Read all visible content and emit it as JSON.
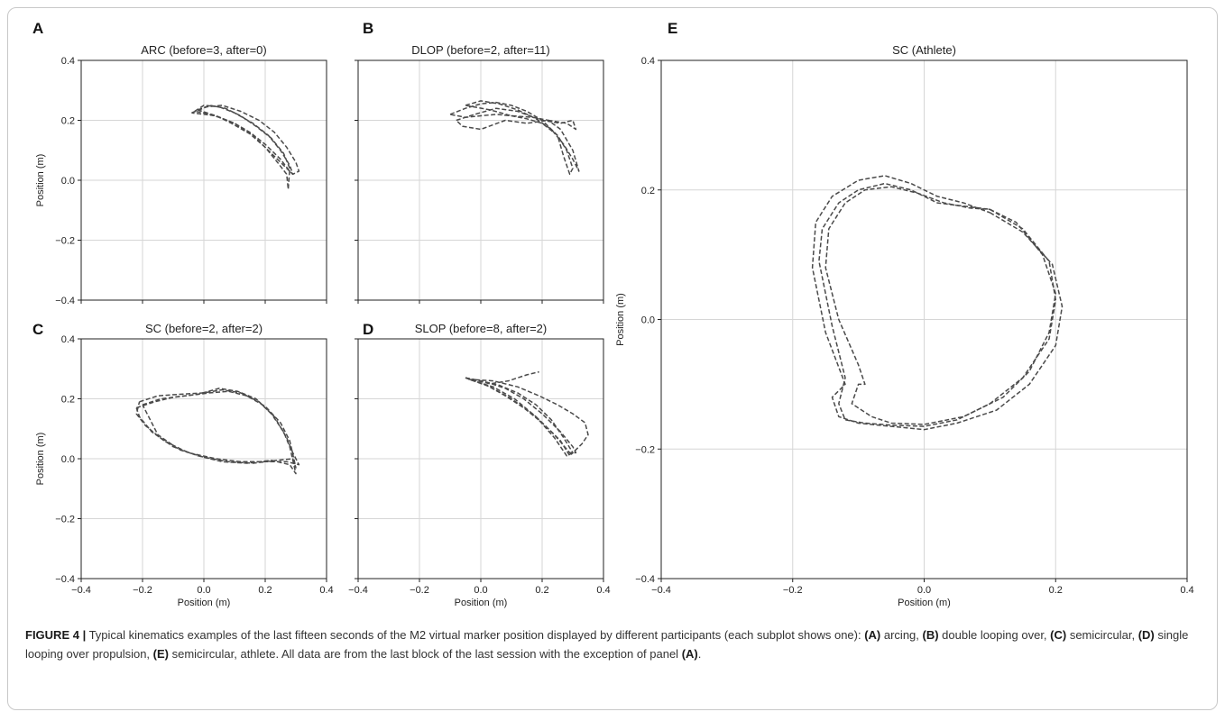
{
  "chart_data": [
    {
      "panel": "A",
      "type": "line",
      "title": "ARC (before=3, after=0)",
      "xlabel": "",
      "ylabel": "Position (m)",
      "xlim": [
        -0.4,
        0.4
      ],
      "ylim": [
        -0.4,
        0.4
      ],
      "xticks": [],
      "yticks": [
        "−0.4",
        "−0.2",
        "0.0",
        "0.2",
        "0.4"
      ],
      "grid": true,
      "series": [
        {
          "x": [
            -0.03,
            0.0,
            0.05,
            0.1,
            0.16,
            0.21,
            0.25,
            0.28,
            0.29,
            0.28,
            0.25,
            0.2,
            0.15,
            0.1,
            0.05,
            0.0,
            -0.03
          ],
          "y": [
            0.23,
            0.25,
            0.245,
            0.225,
            0.19,
            0.15,
            0.1,
            0.05,
            0.02,
            0.03,
            0.07,
            0.12,
            0.16,
            0.19,
            0.21,
            0.225,
            0.23
          ]
        },
        {
          "x": [
            -0.02,
            0.02,
            0.07,
            0.12,
            0.17,
            0.22,
            0.26,
            0.28,
            0.275,
            0.27,
            0.24,
            0.2,
            0.15,
            0.09,
            0.04,
            -0.02
          ],
          "y": [
            0.235,
            0.25,
            0.24,
            0.215,
            0.18,
            0.14,
            0.09,
            0.04,
            -0.03,
            0.02,
            0.06,
            0.11,
            0.155,
            0.19,
            0.215,
            0.235
          ]
        },
        {
          "x": [
            -0.04,
            0.01,
            0.06,
            0.12,
            0.18,
            0.23,
            0.27,
            0.3,
            0.31,
            0.29,
            0.26,
            0.21,
            0.16,
            0.1,
            0.04,
            -0.04
          ],
          "y": [
            0.225,
            0.245,
            0.25,
            0.23,
            0.2,
            0.16,
            0.11,
            0.06,
            0.03,
            0.02,
            0.05,
            0.1,
            0.15,
            0.19,
            0.215,
            0.225
          ]
        }
      ]
    },
    {
      "panel": "B",
      "type": "line",
      "title": "DLOP (before=2, after=11)",
      "xlabel": "",
      "ylabel": "",
      "xlim": [
        -0.4,
        0.4
      ],
      "ylim": [
        -0.4,
        0.4
      ],
      "xticks": [],
      "yticks": [],
      "grid": true,
      "series": [
        {
          "x": [
            -0.1,
            -0.05,
            0.0,
            0.05,
            0.1,
            0.15,
            0.2,
            0.25,
            0.28,
            0.3,
            0.29,
            0.27,
            0.25,
            0.2,
            0.15,
            0.1,
            0.05,
            0.0,
            -0.05,
            -0.1
          ],
          "y": [
            0.22,
            0.24,
            0.255,
            0.26,
            0.25,
            0.23,
            0.2,
            0.15,
            0.1,
            0.04,
            0.02,
            0.08,
            0.15,
            0.19,
            0.205,
            0.215,
            0.22,
            0.215,
            0.21,
            0.22
          ]
        },
        {
          "x": [
            -0.08,
            -0.02,
            0.05,
            0.12,
            0.2,
            0.26,
            0.3,
            0.31,
            0.28,
            0.22,
            0.15,
            0.08,
            0.0,
            -0.06,
            -0.08
          ],
          "y": [
            0.2,
            0.22,
            0.24,
            0.23,
            0.2,
            0.19,
            0.2,
            0.17,
            0.19,
            0.2,
            0.19,
            0.2,
            0.17,
            0.18,
            0.2
          ]
        },
        {
          "x": [
            -0.05,
            0.0,
            0.06,
            0.12,
            0.18,
            0.23,
            0.27,
            0.3,
            0.32,
            0.3,
            0.26,
            0.22,
            0.17,
            0.1,
            0.03,
            -0.05
          ],
          "y": [
            0.25,
            0.265,
            0.255,
            0.235,
            0.205,
            0.17,
            0.12,
            0.07,
            0.03,
            0.1,
            0.17,
            0.2,
            0.21,
            0.215,
            0.235,
            0.25
          ]
        }
      ]
    },
    {
      "panel": "C",
      "type": "line",
      "title": "SC (before=2, after=2)",
      "xlabel": "Position (m)",
      "ylabel": "Position (m)",
      "xlim": [
        -0.4,
        0.4
      ],
      "ylim": [
        -0.4,
        0.4
      ],
      "xticks": [
        "−0.4",
        "−0.2",
        "0.0",
        "0.2",
        "0.4"
      ],
      "yticks": [
        "−0.4",
        "−0.2",
        "0.0",
        "0.2",
        "0.4"
      ],
      "grid": true,
      "series": [
        {
          "x": [
            -0.21,
            -0.15,
            -0.08,
            0.0,
            0.06,
            0.12,
            0.18,
            0.23,
            0.27,
            0.29,
            0.31,
            0.27,
            0.2,
            0.12,
            0.04,
            -0.05,
            -0.13,
            -0.19,
            -0.22,
            -0.21
          ],
          "y": [
            0.19,
            0.21,
            0.215,
            0.22,
            0.23,
            0.22,
            0.19,
            0.14,
            0.07,
            0.02,
            -0.02,
            -0.01,
            -0.01,
            -0.01,
            0.0,
            0.02,
            0.06,
            0.11,
            0.15,
            0.19
          ]
        },
        {
          "x": [
            -0.2,
            -0.14,
            -0.06,
            0.02,
            0.08,
            0.14,
            0.2,
            0.25,
            0.28,
            0.3,
            0.29,
            0.24,
            0.16,
            0.08,
            0.0,
            -0.08,
            -0.15,
            -0.2
          ],
          "y": [
            0.18,
            0.2,
            0.21,
            0.22,
            0.225,
            0.21,
            0.175,
            0.12,
            0.06,
            -0.03,
            0.0,
            -0.005,
            -0.015,
            -0.01,
            0.005,
            0.03,
            0.08,
            0.18
          ]
        },
        {
          "x": [
            -0.22,
            -0.16,
            -0.1,
            -0.02,
            0.05,
            0.11,
            0.17,
            0.22,
            0.26,
            0.28,
            0.3,
            0.28,
            0.22,
            0.14,
            0.06,
            -0.02,
            -0.1,
            -0.17,
            -0.21,
            -0.22
          ],
          "y": [
            0.17,
            0.19,
            0.205,
            0.215,
            0.235,
            0.225,
            0.2,
            0.15,
            0.09,
            0.04,
            -0.05,
            -0.02,
            -0.005,
            -0.015,
            -0.01,
            0.01,
            0.04,
            0.09,
            0.14,
            0.17
          ]
        }
      ]
    },
    {
      "panel": "D",
      "type": "line",
      "title": "SLOP (before=8, after=2)",
      "xlabel": "Position (m)",
      "ylabel": "",
      "xlim": [
        -0.4,
        0.4
      ],
      "ylim": [
        -0.4,
        0.4
      ],
      "xticks": [
        "−0.4",
        "−0.2",
        "0.0",
        "0.2",
        "0.4"
      ],
      "yticks": [],
      "grid": true,
      "series": [
        {
          "x": [
            -0.05,
            0.0,
            0.06,
            0.12,
            0.18,
            0.23,
            0.27,
            0.3,
            0.29,
            0.26,
            0.2,
            0.14,
            0.08,
            0.02,
            -0.05
          ],
          "y": [
            0.27,
            0.26,
            0.245,
            0.22,
            0.18,
            0.13,
            0.07,
            0.02,
            0.01,
            0.06,
            0.12,
            0.17,
            0.21,
            0.245,
            0.27
          ]
        },
        {
          "x": [
            -0.05,
            0.02,
            0.08,
            0.14,
            0.2,
            0.26,
            0.3,
            0.31,
            0.29,
            0.24,
            0.18,
            0.1,
            0.03,
            -0.05
          ],
          "y": [
            0.27,
            0.255,
            0.235,
            0.2,
            0.15,
            0.09,
            0.04,
            0.02,
            0.02,
            0.08,
            0.14,
            0.2,
            0.24,
            0.27
          ]
        },
        {
          "x": [
            -0.04,
            0.04,
            0.12,
            0.19,
            0.25,
            0.3,
            0.34,
            0.35,
            0.33,
            0.3,
            0.28,
            0.24,
            0.18,
            0.11,
            0.04,
            -0.04
          ],
          "y": [
            0.265,
            0.26,
            0.24,
            0.21,
            0.18,
            0.15,
            0.12,
            0.08,
            0.05,
            0.02,
            0.01,
            0.07,
            0.14,
            0.2,
            0.24,
            0.265
          ]
        },
        {
          "x": [
            -0.05,
            0.03,
            0.09,
            0.15,
            0.19
          ],
          "y": [
            0.27,
            0.25,
            0.26,
            0.28,
            0.29
          ]
        }
      ]
    },
    {
      "panel": "E",
      "type": "line",
      "title": "SC (Athlete)",
      "xlabel": "Position (m)",
      "ylabel": "Position (m)",
      "xlim": [
        -0.4,
        0.4
      ],
      "ylim": [
        -0.4,
        0.4
      ],
      "xticks": [
        "−0.4",
        "−0.2",
        "0.0",
        "0.2",
        "0.4"
      ],
      "yticks": [
        "−0.4",
        "−0.2",
        "0.0",
        "0.2",
        "0.4"
      ],
      "grid": true,
      "series": [
        {
          "x": [
            0.1,
            0.15,
            0.19,
            0.2,
            0.19,
            0.15,
            0.1,
            0.05,
            0.0,
            -0.05,
            -0.09,
            -0.12,
            -0.13,
            -0.12,
            -0.14,
            -0.16,
            -0.155,
            -0.13,
            -0.1,
            -0.06,
            -0.02,
            0.02,
            0.06,
            0.1
          ],
          "y": [
            0.17,
            0.14,
            0.09,
            0.03,
            -0.03,
            -0.09,
            -0.13,
            -0.155,
            -0.165,
            -0.163,
            -0.16,
            -0.155,
            -0.13,
            -0.09,
            -0.01,
            0.09,
            0.14,
            0.18,
            0.2,
            0.21,
            0.2,
            0.18,
            0.175,
            0.17
          ]
        },
        {
          "x": [
            0.1,
            0.15,
            0.195,
            0.21,
            0.2,
            0.16,
            0.11,
            0.05,
            0.0,
            -0.05,
            -0.1,
            -0.13,
            -0.14,
            -0.12,
            -0.15,
            -0.17,
            -0.165,
            -0.14,
            -0.1,
            -0.06,
            -0.02,
            0.02,
            0.06,
            0.1
          ],
          "y": [
            0.165,
            0.135,
            0.085,
            0.02,
            -0.04,
            -0.1,
            -0.14,
            -0.16,
            -0.17,
            -0.165,
            -0.16,
            -0.15,
            -0.12,
            -0.1,
            -0.02,
            0.08,
            0.15,
            0.19,
            0.215,
            0.222,
            0.21,
            0.19,
            0.18,
            0.165
          ]
        },
        {
          "x": [
            0.1,
            0.14,
            0.18,
            0.2,
            0.19,
            0.16,
            0.12,
            0.06,
            0.0,
            -0.05,
            -0.08,
            -0.11,
            -0.1,
            -0.09,
            -0.1,
            -0.13,
            -0.15,
            -0.145,
            -0.12,
            -0.09,
            -0.05,
            -0.01,
            0.03,
            0.07,
            0.1
          ],
          "y": [
            0.17,
            0.15,
            0.1,
            0.04,
            -0.02,
            -0.08,
            -0.12,
            -0.15,
            -0.162,
            -0.16,
            -0.15,
            -0.13,
            -0.1,
            -0.1,
            -0.07,
            0.0,
            0.08,
            0.14,
            0.18,
            0.2,
            0.205,
            0.195,
            0.18,
            0.172,
            0.17
          ]
        }
      ]
    }
  ],
  "panel_letters": [
    "A",
    "B",
    "C",
    "D",
    "E"
  ],
  "caption": {
    "figure_label": "FIGURE 4 |",
    "lead": " Typical kinematics examples of the last fifteen seconds of the M2 virtual marker position displayed by different participants (each subplot shows one): ",
    "a_label": "(A)",
    "a_text": " arcing, ",
    "b_label": "(B)",
    "b_text": " double looping over, ",
    "c_label": "(C)",
    "c_text": " semicircular, ",
    "d_label": "(D)",
    "d_text": " single looping over propulsion, ",
    "e_label": "(E)",
    "e_text": " semicircular, athlete. All data are from the last block of the last session with the exception of panel ",
    "end_label": "(A)",
    "end_text": "."
  },
  "colors": {
    "trace": "#4a4a4a",
    "grid": "#d6d6d6",
    "axis": "#222222",
    "frame_border": "#c8c8c8"
  }
}
